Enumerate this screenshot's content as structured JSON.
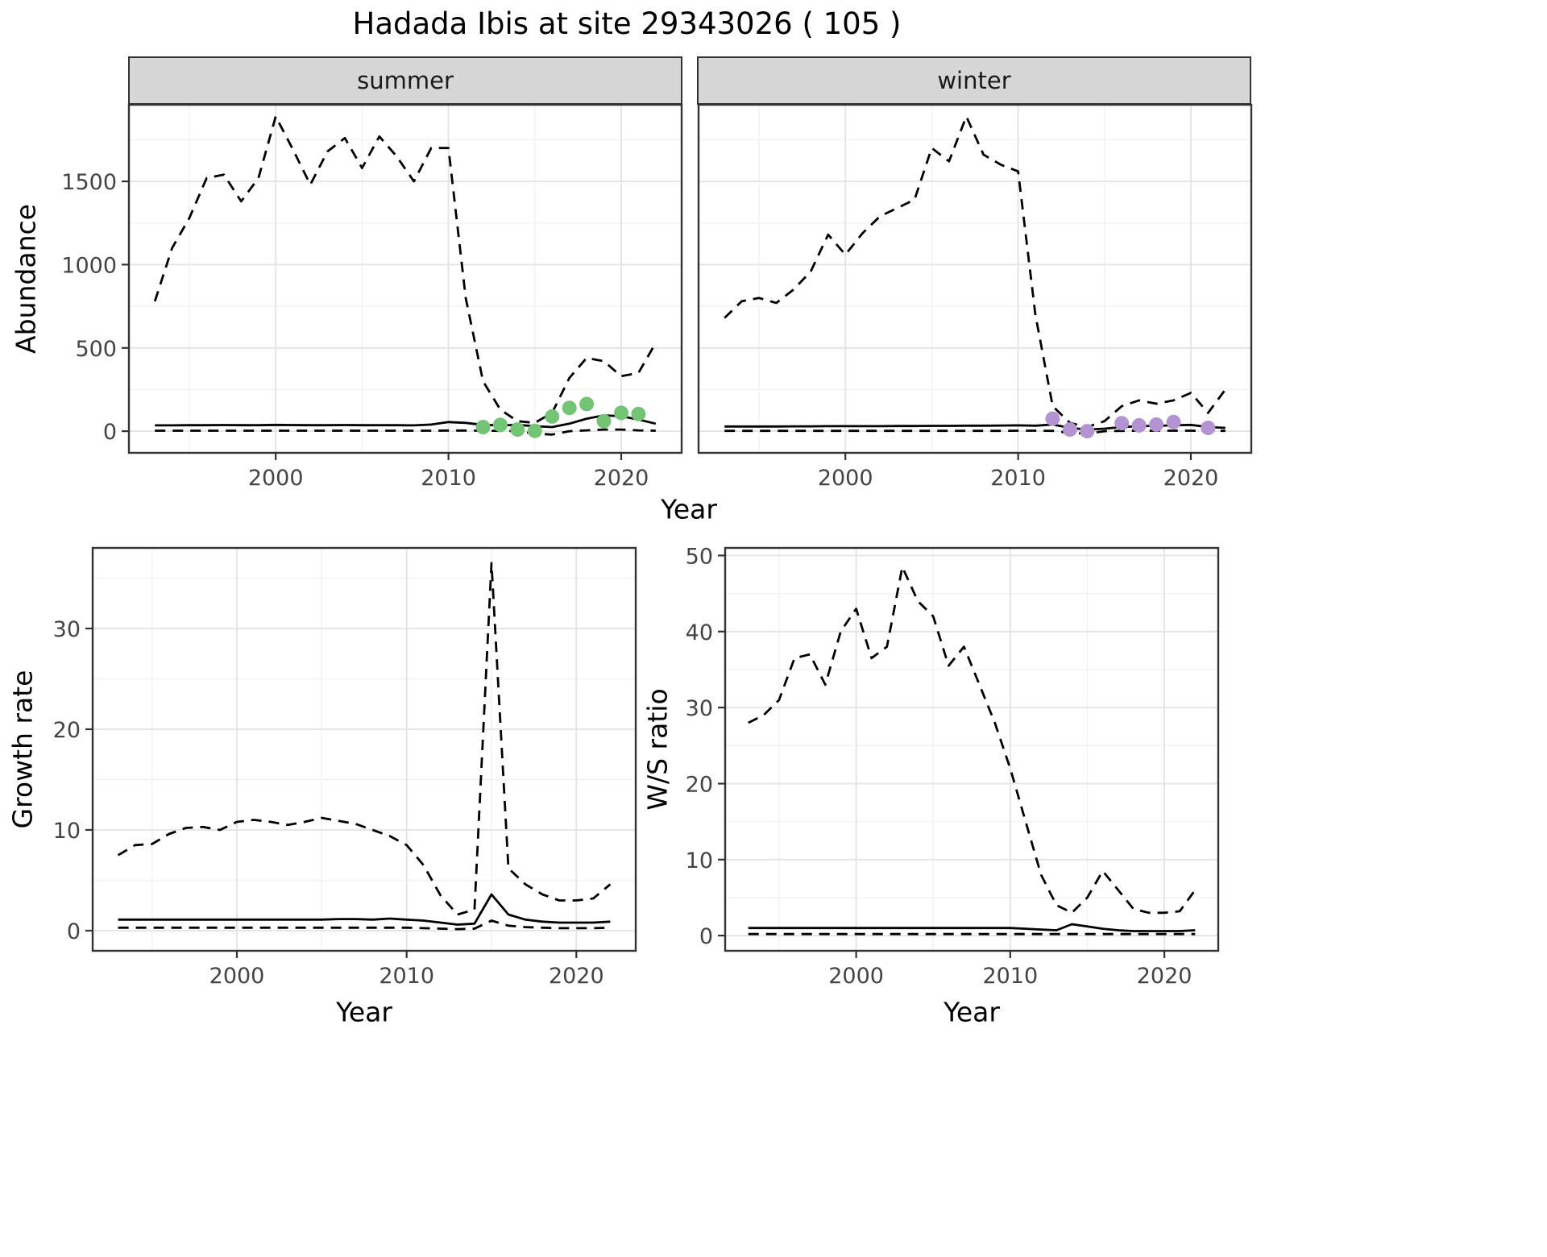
{
  "title": "Hadada Ibis at site 29343026 ( 105 )",
  "facets": [
    "summer",
    "winter"
  ],
  "labels": {
    "abundance": "Abundance",
    "year": "Year",
    "growth_rate": "Growth rate",
    "ws_ratio": "W/S ratio"
  },
  "colors": {
    "line": "#000000",
    "grid_major": "#e3e3e3",
    "grid_minor": "#f2f2f2",
    "panel_border": "#333333",
    "strip_bg": "#d6d6d6",
    "tick_label": "#444444",
    "summer_points": "#74c476",
    "winter_points": "#b493d3"
  },
  "chart_data": [
    {
      "id": "abundance_summer",
      "type": "line",
      "panel_title": "summer",
      "ylabel": "Abundance",
      "xlabel": "Year",
      "x": [
        1993,
        1994,
        1995,
        1996,
        1997,
        1998,
        1999,
        2000,
        2001,
        2002,
        2003,
        2004,
        2005,
        2006,
        2007,
        2008,
        2009,
        2010,
        2011,
        2012,
        2013,
        2014,
        2015,
        2016,
        2017,
        2018,
        2019,
        2020,
        2021,
        2022
      ],
      "series": [
        {
          "name": "upper_95ci",
          "style": "dashed",
          "values": [
            780,
            1100,
            1280,
            1520,
            1540,
            1380,
            1520,
            1890,
            1690,
            1480,
            1680,
            1760,
            1580,
            1770,
            1650,
            1500,
            1700,
            1700,
            800,
            300,
            130,
            60,
            50,
            110,
            320,
            440,
            420,
            330,
            350,
            530
          ]
        },
        {
          "name": "model_estimate",
          "style": "solid",
          "values": [
            35,
            35,
            36,
            36,
            37,
            36,
            36,
            38,
            37,
            36,
            36,
            37,
            36,
            36,
            36,
            35,
            40,
            55,
            50,
            38,
            35,
            38,
            30,
            25,
            45,
            75,
            95,
            90,
            70,
            45
          ]
        },
        {
          "name": "lower_95ci",
          "style": "dashed",
          "values": [
            3,
            3,
            3,
            3,
            3,
            3,
            3,
            3,
            3,
            3,
            3,
            3,
            3,
            3,
            3,
            3,
            3,
            4,
            4,
            3,
            2,
            0,
            -15,
            -20,
            0,
            5,
            10,
            10,
            5,
            3
          ]
        }
      ],
      "points": {
        "name": "observed_counts_summer",
        "color": "#74c476",
        "x": [
          2012,
          2013,
          2014,
          2015,
          2016,
          2017,
          2018,
          2019,
          2020,
          2021
        ],
        "y": [
          25,
          38,
          10,
          2,
          88,
          140,
          163,
          60,
          110,
          103
        ]
      },
      "xlim": [
        1991.5,
        2023.5
      ],
      "ylim": [
        -130,
        1960
      ],
      "xticks": [
        2000,
        2010,
        2020
      ],
      "yticks": [
        0,
        500,
        1000,
        1500
      ]
    },
    {
      "id": "abundance_winter",
      "type": "line",
      "panel_title": "winter",
      "ylabel": "Abundance",
      "xlabel": "Year",
      "x": [
        1993,
        1994,
        1995,
        1996,
        1997,
        1998,
        1999,
        2000,
        2001,
        2002,
        2003,
        2004,
        2005,
        2006,
        2007,
        2008,
        2009,
        2010,
        2011,
        2012,
        2013,
        2014,
        2015,
        2016,
        2017,
        2018,
        2019,
        2020,
        2021,
        2022
      ],
      "series": [
        {
          "name": "upper_95ci",
          "style": "dashed",
          "values": [
            680,
            780,
            800,
            770,
            850,
            960,
            1180,
            1060,
            1190,
            1290,
            1340,
            1390,
            1700,
            1620,
            1890,
            1660,
            1600,
            1560,
            700,
            150,
            50,
            25,
            60,
            150,
            185,
            165,
            185,
            230,
            110,
            250
          ]
        },
        {
          "name": "model_estimate",
          "style": "solid",
          "values": [
            28,
            28,
            28,
            28,
            29,
            29,
            30,
            30,
            30,
            30,
            31,
            31,
            32,
            32,
            33,
            33,
            34,
            35,
            33,
            40,
            20,
            10,
            15,
            25,
            30,
            32,
            35,
            38,
            25,
            20
          ]
        },
        {
          "name": "lower_95ci",
          "style": "dashed",
          "values": [
            2,
            2,
            2,
            2,
            2,
            2,
            2,
            2,
            2,
            2,
            2,
            2,
            2,
            2,
            2,
            2,
            2,
            3,
            3,
            2,
            -10,
            -15,
            0,
            2,
            3,
            3,
            3,
            3,
            2,
            2
          ]
        }
      ],
      "points": {
        "name": "observed_counts_winter",
        "color": "#b493d3",
        "x": [
          2012,
          2013,
          2014,
          2016,
          2017,
          2018,
          2019,
          2021
        ],
        "y": [
          75,
          10,
          0,
          48,
          35,
          40,
          55,
          20
        ]
      },
      "xlim": [
        1991.5,
        2023.5
      ],
      "ylim": [
        -130,
        1960
      ],
      "xticks": [
        2000,
        2010,
        2020
      ],
      "yticks": [
        0,
        500,
        1000,
        1500
      ]
    },
    {
      "id": "growth_rate",
      "type": "line",
      "panel_title": "",
      "ylabel": "Growth rate",
      "xlabel": "Year",
      "x": [
        1993,
        1994,
        1995,
        1996,
        1997,
        1998,
        1999,
        2000,
        2001,
        2002,
        2003,
        2004,
        2005,
        2006,
        2007,
        2008,
        2009,
        2010,
        2011,
        2012,
        2013,
        2014,
        2015,
        2016,
        2017,
        2018,
        2019,
        2020,
        2021,
        2022
      ],
      "series": [
        {
          "name": "upper_95ci",
          "style": "dashed",
          "values": [
            7.5,
            8.5,
            8.6,
            9.6,
            10.2,
            10.3,
            10,
            10.8,
            11,
            10.8,
            10.5,
            10.8,
            11.2,
            10.9,
            10.6,
            10,
            9.4,
            8.5,
            6.5,
            3.5,
            1.6,
            2.1,
            36.5,
            6.2,
            4.6,
            3.6,
            3,
            3,
            3.2,
            4.6
          ]
        },
        {
          "name": "model_estimate",
          "style": "solid",
          "values": [
            1.1,
            1.1,
            1.1,
            1.1,
            1.1,
            1.1,
            1.1,
            1.1,
            1.1,
            1.1,
            1.1,
            1.1,
            1.1,
            1.15,
            1.15,
            1.1,
            1.2,
            1.1,
            1,
            0.8,
            0.6,
            0.7,
            3.6,
            1.6,
            1.1,
            0.9,
            0.8,
            0.8,
            0.8,
            0.9
          ]
        },
        {
          "name": "lower_95ci",
          "style": "dashed",
          "values": [
            0.3,
            0.3,
            0.3,
            0.3,
            0.3,
            0.3,
            0.3,
            0.3,
            0.3,
            0.3,
            0.3,
            0.3,
            0.3,
            0.3,
            0.3,
            0.3,
            0.3,
            0.3,
            0.25,
            0.2,
            0.15,
            0.2,
            1,
            0.5,
            0.35,
            0.3,
            0.25,
            0.25,
            0.25,
            0.3
          ]
        }
      ],
      "xlim": [
        1991.5,
        2023.5
      ],
      "ylim": [
        -2,
        38
      ],
      "xticks": [
        2000,
        2010,
        2020
      ],
      "yticks": [
        0,
        10,
        20,
        30
      ]
    },
    {
      "id": "ws_ratio",
      "type": "line",
      "panel_title": "",
      "ylabel": "W/S ratio",
      "xlabel": "Year",
      "x": [
        1993,
        1994,
        1995,
        1996,
        1997,
        1998,
        1999,
        2000,
        2001,
        2002,
        2003,
        2004,
        2005,
        2006,
        2007,
        2008,
        2009,
        2010,
        2011,
        2012,
        2013,
        2014,
        2015,
        2016,
        2017,
        2018,
        2019,
        2020,
        2021,
        2022
      ],
      "series": [
        {
          "name": "upper_95ci",
          "style": "dashed",
          "values": [
            28,
            29,
            31,
            36.5,
            37,
            33,
            40,
            43,
            36.5,
            38,
            48.5,
            44,
            42,
            35.5,
            38,
            33,
            28,
            22,
            15,
            8,
            4,
            3,
            5,
            8.5,
            6,
            3.5,
            3,
            3,
            3.2,
            6
          ]
        },
        {
          "name": "model_estimate",
          "style": "solid",
          "values": [
            1,
            1,
            1,
            1,
            1,
            1,
            1,
            1,
            1,
            1,
            1,
            1,
            1,
            1,
            1,
            1,
            1,
            1,
            0.9,
            0.8,
            0.7,
            1.5,
            1.2,
            0.9,
            0.7,
            0.6,
            0.6,
            0.6,
            0.6,
            0.7
          ]
        },
        {
          "name": "lower_95ci",
          "style": "dashed",
          "values": [
            0.2,
            0.2,
            0.2,
            0.2,
            0.2,
            0.2,
            0.2,
            0.2,
            0.2,
            0.2,
            0.2,
            0.2,
            0.2,
            0.2,
            0.2,
            0.2,
            0.2,
            0.2,
            0.2,
            0.2,
            0.2,
            0.2,
            0.2,
            0.2,
            0.2,
            0.2,
            0.2,
            0.2,
            0.2,
            0.2
          ]
        }
      ],
      "xlim": [
        1991.5,
        2023.5
      ],
      "ylim": [
        -2,
        51
      ],
      "xticks": [
        2000,
        2010,
        2020
      ],
      "yticks": [
        0,
        10,
        20,
        30,
        40,
        50
      ]
    }
  ]
}
